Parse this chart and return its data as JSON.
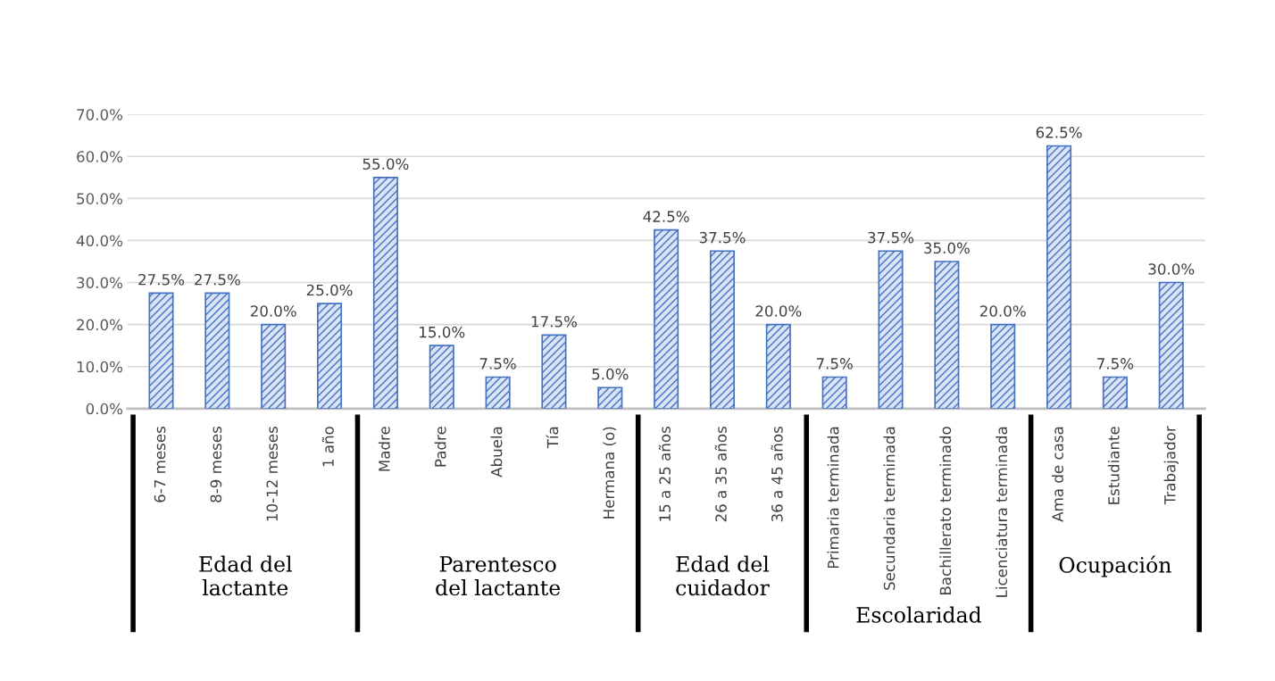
{
  "chart_data": {
    "type": "bar",
    "categories": [
      "6-7 meses",
      "8-9 meses",
      "10-12 meses",
      "1 año",
      "Madre",
      "Padre",
      "Abuela",
      "Tía",
      "Hermana (o)",
      "15 a 25 años",
      "26 a 35 años",
      "36 a 45 años",
      "Primaria terminada",
      "Secundaria terminada",
      "Bachillerato terminado",
      "Licenciatura terminada",
      "Ama de casa",
      "Estudiante",
      "Trabajador"
    ],
    "values": [
      27.5,
      27.5,
      20.0,
      25.0,
      55.0,
      15.0,
      7.5,
      17.5,
      5.0,
      42.5,
      37.5,
      20.0,
      7.5,
      37.5,
      35.0,
      20.0,
      62.5,
      7.5,
      30.0
    ],
    "value_labels": [
      "27.5%",
      "27.5%",
      "20.0%",
      "25.0%",
      "55.0%",
      "15.0%",
      "7.5%",
      "17.5%",
      "5.0%",
      "42.5%",
      "37.5%",
      "20.0%",
      "7.5%",
      "37.5%",
      "35.0%",
      "20.0%",
      "62.5%",
      "7.5%",
      "30.0%"
    ],
    "color": "#4472c4",
    "ylim": [
      0,
      70
    ],
    "yticks": [
      {
        "value": 0,
        "label": "0.0%"
      },
      {
        "value": 10,
        "label": "10.0%"
      },
      {
        "value": 20,
        "label": "20.0%"
      },
      {
        "value": 30,
        "label": "30.0%"
      },
      {
        "value": 40,
        "label": "40.0%"
      },
      {
        "value": 50,
        "label": "50.0%"
      },
      {
        "value": 60,
        "label": "60.0%"
      },
      {
        "value": 70,
        "label": "70.0%"
      }
    ],
    "grid": "y",
    "annotations": [
      "Edad del\nlactante",
      "Parentesco\ndel lactante",
      "Edad del\ncuidador",
      "Escolaridad",
      "Ocupación"
    ]
  }
}
